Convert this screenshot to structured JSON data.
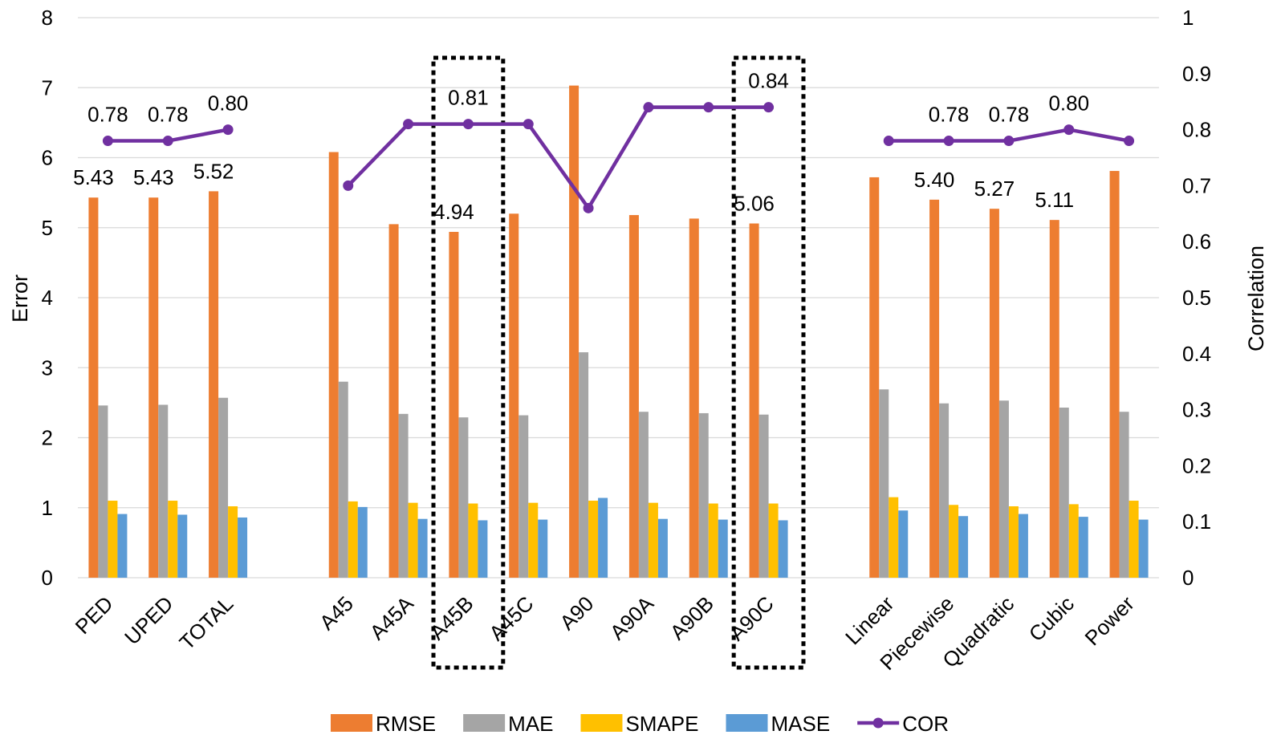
{
  "chart_data": {
    "type": "bar",
    "categories": [
      "PED",
      "UPED",
      "TOTAL",
      "",
      "A45",
      "A45A",
      "A45B",
      "A45C",
      "A90",
      "A90A",
      "A90B",
      "A90C",
      "",
      "Linear",
      "Piecewise",
      "Quadratic",
      "Cubic",
      "Power"
    ],
    "ylabel": "Error",
    "y2label": "Correlation",
    "ylim": [
      0,
      8
    ],
    "y2lim": [
      0,
      1
    ],
    "yticks": [
      "0",
      "1",
      "2",
      "3",
      "4",
      "5",
      "6",
      "7",
      "8"
    ],
    "y2ticks": [
      "0",
      "0.1",
      "0.2",
      "0.3",
      "0.4",
      "0.5",
      "0.6",
      "0.7",
      "0.8",
      "0.9",
      "1"
    ],
    "grid": true,
    "legend_position": "bottom",
    "highlighted_categories": [
      "A45B",
      "A90C"
    ],
    "series": [
      {
        "name": "RMSE",
        "axis": "left",
        "kind": "bar",
        "color": "#ED7D31",
        "values": [
          5.43,
          5.43,
          5.52,
          null,
          6.08,
          5.05,
          4.94,
          5.2,
          7.03,
          5.18,
          5.13,
          5.06,
          null,
          5.72,
          5.4,
          5.27,
          5.11,
          5.81
        ],
        "labels": [
          "5.43",
          "5.43",
          "5.52",
          "",
          "",
          "",
          "4.94",
          "",
          "",
          "",
          "",
          "5.06",
          "",
          "",
          "5.40",
          "5.27",
          "5.11",
          ""
        ]
      },
      {
        "name": "MAE",
        "axis": "left",
        "kind": "bar",
        "color": "#A5A5A5",
        "values": [
          2.46,
          2.47,
          2.57,
          null,
          2.8,
          2.34,
          2.29,
          2.32,
          3.22,
          2.37,
          2.35,
          2.33,
          null,
          2.69,
          2.49,
          2.53,
          2.43,
          2.37
        ]
      },
      {
        "name": "SMAPE",
        "axis": "left",
        "kind": "bar",
        "color": "#FFC000",
        "values": [
          1.1,
          1.1,
          1.02,
          null,
          1.09,
          1.07,
          1.06,
          1.07,
          1.1,
          1.07,
          1.06,
          1.06,
          null,
          1.15,
          1.04,
          1.02,
          1.05,
          1.1
        ]
      },
      {
        "name": "MASE",
        "axis": "left",
        "kind": "bar",
        "color": "#5B9BD5",
        "values": [
          0.91,
          0.9,
          0.86,
          null,
          1.01,
          0.84,
          0.82,
          0.83,
          1.14,
          0.84,
          0.83,
          0.82,
          null,
          0.96,
          0.88,
          0.91,
          0.87,
          0.83
        ]
      },
      {
        "name": "COR",
        "axis": "right",
        "kind": "line",
        "color": "#7030A0",
        "values": [
          0.78,
          0.78,
          0.8,
          null,
          0.7,
          0.81,
          0.81,
          0.81,
          0.66,
          0.84,
          0.84,
          0.84,
          null,
          0.78,
          0.78,
          0.78,
          0.8,
          0.78
        ],
        "labels": [
          "0.78",
          "0.78",
          "0.80",
          "",
          "",
          "",
          "0.81",
          "",
          "",
          "",
          "",
          "0.84",
          "",
          "",
          "0.78",
          "0.78",
          "0.80",
          ""
        ]
      }
    ]
  }
}
